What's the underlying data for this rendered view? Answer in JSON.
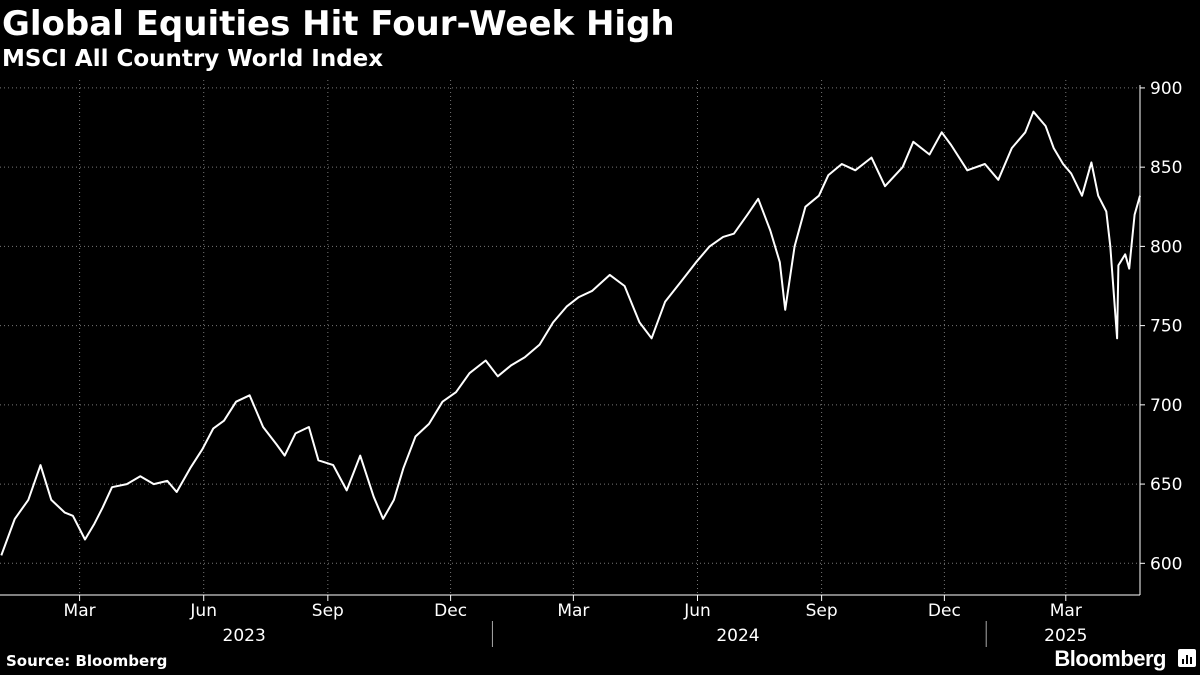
{
  "chart_data": {
    "type": "line",
    "title": "Global Equities Hit Four-Week High",
    "subtitle": "MSCI All Country World Index",
    "source": "Source: Bloomberg",
    "brand": "Bloomberg",
    "ylim": [
      580,
      905
    ],
    "y_ticks": [
      600,
      650,
      700,
      750,
      800,
      850,
      900
    ],
    "month_ticks": [
      {
        "label": "Mar",
        "date": "2023-03-01"
      },
      {
        "label": "Jun",
        "date": "2023-06-01"
      },
      {
        "label": "Sep",
        "date": "2023-09-01"
      },
      {
        "label": "Dec",
        "date": "2023-12-01"
      },
      {
        "label": "Mar",
        "date": "2024-03-01"
      },
      {
        "label": "Jun",
        "date": "2024-06-01"
      },
      {
        "label": "Sep",
        "date": "2024-09-01"
      },
      {
        "label": "Dec",
        "date": "2024-12-01"
      },
      {
        "label": "Mar",
        "date": "2025-03-01"
      }
    ],
    "year_labels": [
      {
        "label": "2023",
        "date": "2023-07-01"
      },
      {
        "label": "2024",
        "date": "2024-07-01"
      },
      {
        "label": "2025",
        "date": "2025-03-01"
      }
    ],
    "year_dividers": [
      "2024-01-01",
      "2025-01-01"
    ],
    "grid": true,
    "x_range": [
      "2023-01-01",
      "2025-04-25"
    ],
    "series": [
      {
        "line_color": "#ffffff",
        "x": [
          "2023-01-02",
          "2023-01-12",
          "2023-01-22",
          "2023-01-31",
          "2023-02-08",
          "2023-02-18",
          "2023-02-24",
          "2023-03-05",
          "2023-03-12",
          "2023-03-18",
          "2023-03-25",
          "2023-04-05",
          "2023-04-15",
          "2023-04-25",
          "2023-05-05",
          "2023-05-12",
          "2023-05-22",
          "2023-05-31",
          "2023-06-08",
          "2023-06-16",
          "2023-06-25",
          "2023-07-05",
          "2023-07-15",
          "2023-07-25",
          "2023-07-31",
          "2023-08-08",
          "2023-08-18",
          "2023-08-25",
          "2023-09-05",
          "2023-09-15",
          "2023-09-25",
          "2023-10-05",
          "2023-10-12",
          "2023-10-20",
          "2023-10-27",
          "2023-11-05",
          "2023-11-15",
          "2023-11-25",
          "2023-12-05",
          "2023-12-15",
          "2023-12-27",
          "2024-01-05",
          "2024-01-15",
          "2024-01-25",
          "2024-02-05",
          "2024-02-15",
          "2024-02-25",
          "2024-03-05",
          "2024-03-15",
          "2024-03-28",
          "2024-04-08",
          "2024-04-19",
          "2024-04-28",
          "2024-05-08",
          "2024-05-20",
          "2024-05-31",
          "2024-06-10",
          "2024-06-20",
          "2024-06-28",
          "2024-07-08",
          "2024-07-16",
          "2024-07-25",
          "2024-08-01",
          "2024-08-05",
          "2024-08-12",
          "2024-08-20",
          "2024-08-30",
          "2024-09-06",
          "2024-09-16",
          "2024-09-26",
          "2024-10-08",
          "2024-10-18",
          "2024-10-31",
          "2024-11-08",
          "2024-11-20",
          "2024-11-29",
          "2024-12-06",
          "2024-12-18",
          "2024-12-31",
          "2025-01-10",
          "2025-01-20",
          "2025-01-30",
          "2025-02-05",
          "2025-02-14",
          "2025-02-20",
          "2025-02-27",
          "2025-03-05",
          "2025-03-13",
          "2025-03-20",
          "2025-03-25",
          "2025-03-31",
          "2025-04-03",
          "2025-04-08",
          "2025-04-09",
          "2025-04-14",
          "2025-04-17",
          "2025-04-21",
          "2025-04-25"
        ],
        "values": [
          605,
          628,
          640,
          662,
          640,
          632,
          630,
          615,
          625,
          635,
          648,
          650,
          655,
          650,
          652,
          645,
          660,
          672,
          685,
          690,
          702,
          706,
          686,
          675,
          668,
          682,
          686,
          665,
          662,
          646,
          668,
          642,
          628,
          640,
          660,
          680,
          688,
          702,
          708,
          720,
          728,
          718,
          725,
          730,
          738,
          752,
          762,
          768,
          772,
          782,
          775,
          752,
          742,
          765,
          778,
          790,
          800,
          806,
          808,
          820,
          830,
          810,
          790,
          760,
          800,
          825,
          832,
          845,
          852,
          848,
          856,
          838,
          850,
          866,
          858,
          872,
          864,
          848,
          852,
          842,
          862,
          872,
          885,
          876,
          862,
          852,
          846,
          832,
          853,
          832,
          822,
          800,
          742,
          788,
          795,
          786,
          820,
          832
        ]
      }
    ]
  }
}
